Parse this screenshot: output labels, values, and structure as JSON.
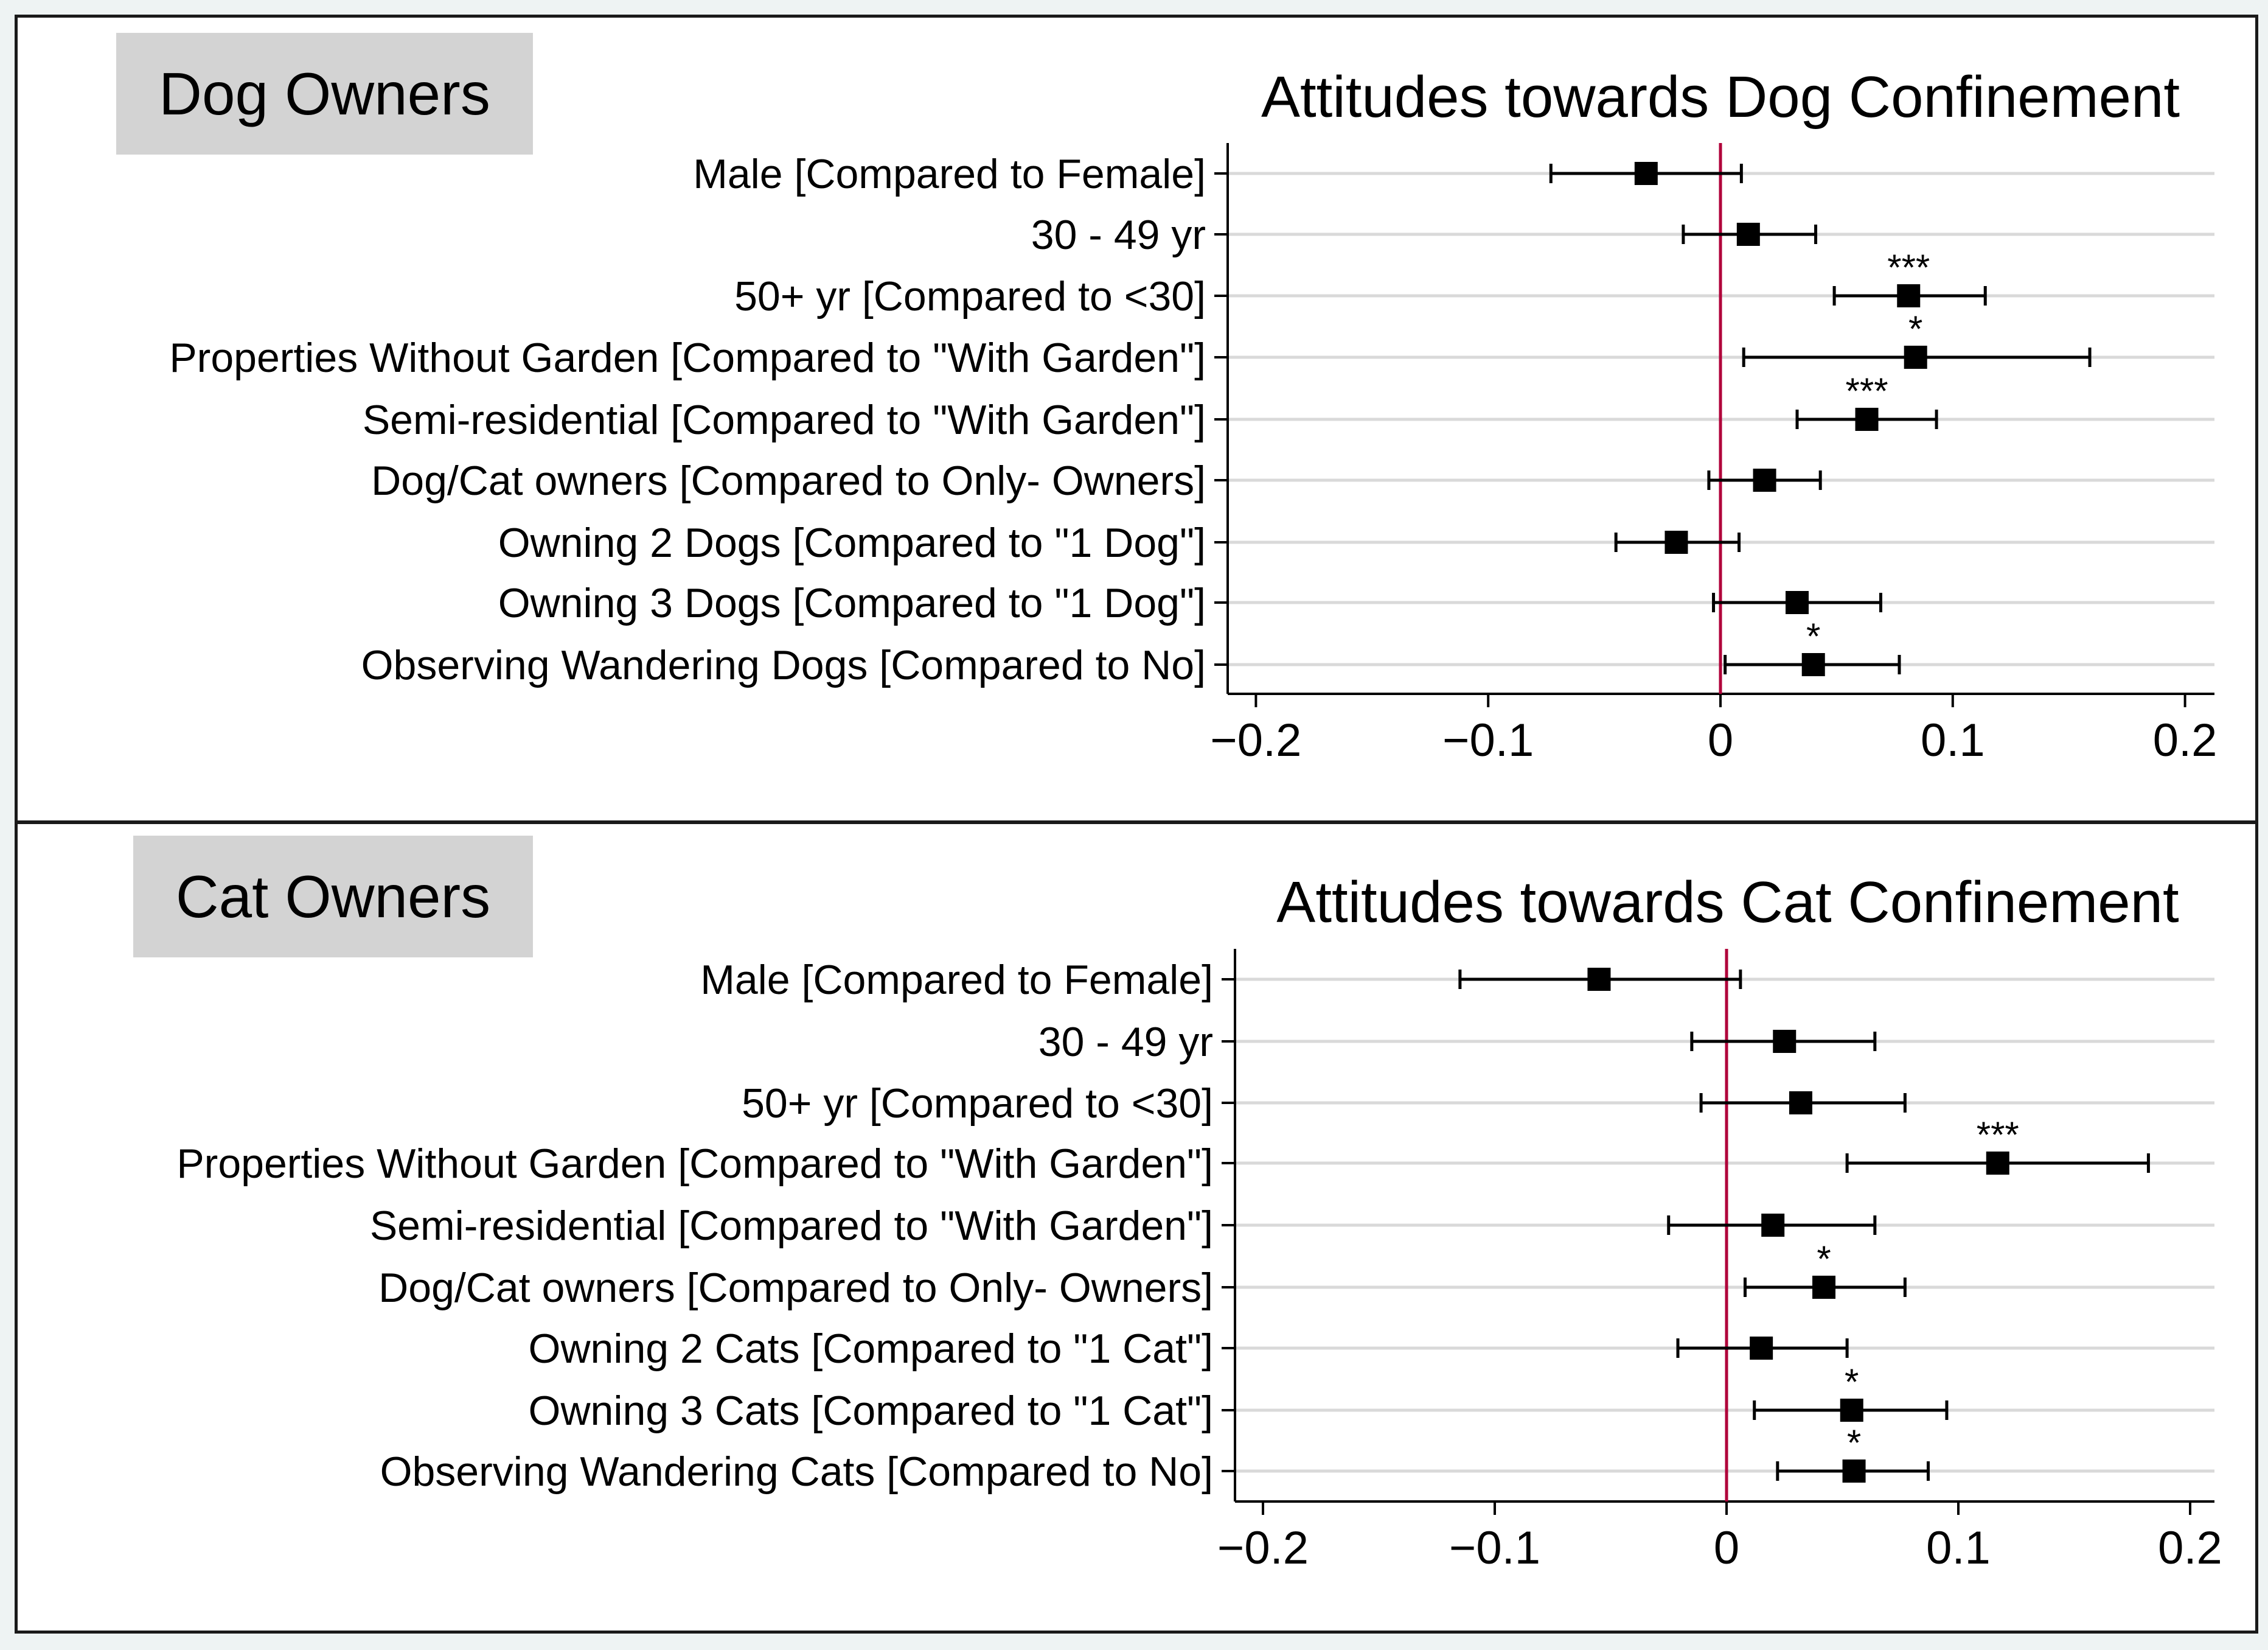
{
  "panels": {
    "dog": {
      "tag": "Dog Owners"
    },
    "cat": {
      "tag": "Cat Owners"
    }
  },
  "colors": {
    "zero_line": "#b0003a",
    "gridline": "#d9d9d9",
    "marker": "#000000"
  },
  "chart_data": [
    {
      "type": "scatter",
      "subtype": "coefficient-plot",
      "title": "Attitudes towards Dog Confinement",
      "xlim": [
        -0.22,
        0.22
      ],
      "xticks": [
        -0.2,
        -0.1,
        0,
        0.1,
        0.2
      ],
      "xtick_labels": [
        "−0.2",
        "−0.1",
        "0",
        "0.1",
        "0.2"
      ],
      "reference_line": 0,
      "categories": [
        "Male [Compared to Female]",
        "30 - 49 yr",
        "50+ yr [Compared to <30]",
        "Properties Without Garden [Compared to \"With Garden\"]",
        "Semi-residential [Compared to \"With Garden\"]",
        "Dog/Cat owners [Compared to Only- Owners]",
        "Owning 2 Dogs [Compared to \"1 Dog\"]",
        "Owning 3 Dogs [Compared to \"1 Dog\"]",
        "Observing Wandering Dogs [Compared to No]"
      ],
      "estimates": [
        -0.032,
        0.012,
        0.081,
        0.084,
        0.063,
        0.019,
        -0.019,
        0.033,
        0.04
      ],
      "ci_low": [
        -0.073,
        -0.016,
        0.049,
        0.01,
        0.033,
        -0.005,
        -0.045,
        -0.003,
        0.002
      ],
      "ci_high": [
        0.009,
        0.041,
        0.114,
        0.159,
        0.093,
        0.043,
        0.008,
        0.069,
        0.077
      ],
      "significance": [
        "",
        "",
        "***",
        "*",
        "***",
        "",
        "",
        "",
        "*"
      ]
    },
    {
      "type": "scatter",
      "subtype": "coefficient-plot",
      "title": "Attitudes towards Cat Confinement",
      "xlim": [
        -0.22,
        0.22
      ],
      "xticks": [
        -0.2,
        -0.1,
        0,
        0.1,
        0.2
      ],
      "xtick_labels": [
        "−0.2",
        "−0.1",
        "0",
        "0.1",
        "0.2"
      ],
      "reference_line": 0,
      "categories": [
        "Male [Compared to Female]",
        "30 - 49 yr",
        "50+ yr [Compared to <30]",
        "Properties Without Garden [Compared to \"With Garden\"]",
        "Semi-residential [Compared to \"With Garden\"]",
        "Dog/Cat owners [Compared to Only- Owners]",
        "Owning 2 Cats [Compared to \"1 Cat\"]",
        "Owning 3 Cats [Compared to \"1 Cat\"]",
        "Observing Wandering Cats [Compared to No]"
      ],
      "estimates": [
        -0.055,
        0.025,
        0.032,
        0.117,
        0.02,
        0.042,
        0.015,
        0.054,
        0.055
      ],
      "ci_low": [
        -0.115,
        -0.015,
        -0.011,
        0.052,
        -0.025,
        0.008,
        -0.021,
        0.012,
        0.022
      ],
      "ci_high": [
        0.006,
        0.064,
        0.077,
        0.182,
        0.064,
        0.077,
        0.052,
        0.095,
        0.087
      ],
      "significance": [
        "",
        "",
        "",
        "***",
        "",
        "*",
        "",
        "*",
        "*"
      ]
    }
  ]
}
